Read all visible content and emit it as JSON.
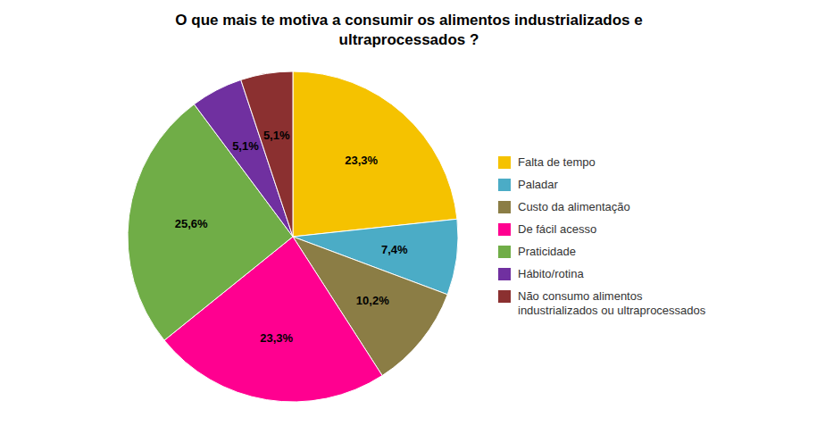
{
  "chart_data": {
    "type": "pie",
    "title": "O que mais te motiva a consumir os alimentos industrializados e\nultraprocessados ?",
    "categories": [
      "Falta de tempo",
      "Paladar",
      "Custo da alimentação",
      "De fácil acesso",
      "Praticidade",
      "Hábito/rotina",
      "Não consumo alimentos\nindustrializados ou ultraprocessados"
    ],
    "values": [
      23.3,
      7.4,
      10.2,
      23.3,
      25.6,
      5.1,
      5.1
    ],
    "value_labels": [
      "23,3%",
      "7,4%",
      "10,2%",
      "23,3%",
      "25,6%",
      "5,1%",
      "5,1%"
    ],
    "colors": [
      "#F5C200",
      "#4BACC6",
      "#8B7D45",
      "#FF0090",
      "#70AD47",
      "#7030A0",
      "#8B3030"
    ],
    "data_labels": true,
    "legend": "right"
  }
}
